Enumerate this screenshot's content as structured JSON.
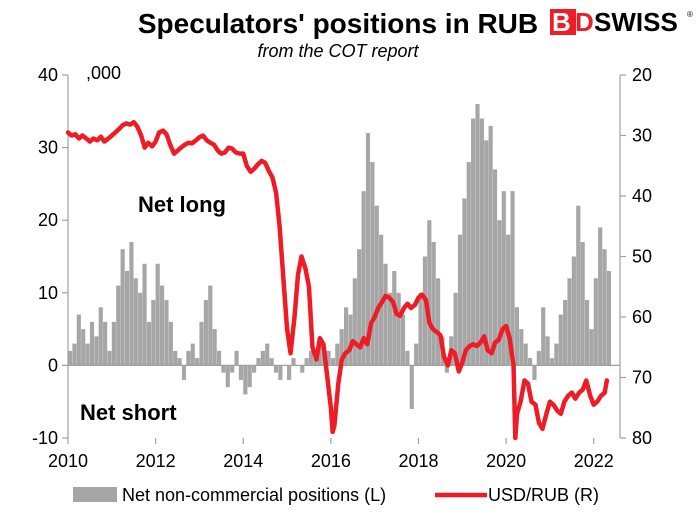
{
  "chart_data": {
    "type": "bar+line",
    "title": "Speculators' positions in RUB",
    "subtitle": "from the COT report",
    "units_label": ",000",
    "annotations": {
      "net_long": "Net long",
      "net_short": "Net short"
    },
    "x_ticks": [
      "2010",
      "2012",
      "2014",
      "2016",
      "2018",
      "2020",
      "2022"
    ],
    "left_axis": {
      "ylim": [
        -10,
        40
      ],
      "ticks": [
        "40",
        "30",
        "20",
        "10",
        "0",
        "-10"
      ]
    },
    "right_axis": {
      "ylim": [
        20,
        80
      ],
      "inverted": true,
      "ticks": [
        "20",
        "30",
        "40",
        "50",
        "60",
        "70",
        "80"
      ]
    },
    "xlim": [
      2010.0,
      2022.6
    ],
    "legend": {
      "placement": "bottom",
      "bars": "Net non-commercial positions (L)",
      "line": "USD/RUB (R)"
    },
    "colors": {
      "bars": "#a6a6a6",
      "line": "#ee1c25",
      "axis": "#a0a0a0"
    },
    "series": [
      {
        "name": "Net non-commercial positions (L)",
        "kind": "bar",
        "axis": "left",
        "points": [
          [
            2010.0,
            2
          ],
          [
            2010.1,
            3
          ],
          [
            2010.2,
            7
          ],
          [
            2010.3,
            5
          ],
          [
            2010.4,
            3
          ],
          [
            2010.5,
            6
          ],
          [
            2010.6,
            4
          ],
          [
            2010.7,
            8
          ],
          [
            2010.8,
            6
          ],
          [
            2010.9,
            2
          ],
          [
            2011.0,
            6
          ],
          [
            2011.1,
            11
          ],
          [
            2011.2,
            16
          ],
          [
            2011.3,
            13
          ],
          [
            2011.4,
            17
          ],
          [
            2011.5,
            12
          ],
          [
            2011.6,
            10
          ],
          [
            2011.7,
            14
          ],
          [
            2011.8,
            6
          ],
          [
            2011.9,
            9
          ],
          [
            2012.0,
            14
          ],
          [
            2012.1,
            11
          ],
          [
            2012.2,
            9
          ],
          [
            2012.3,
            6
          ],
          [
            2012.4,
            2
          ],
          [
            2012.5,
            1
          ],
          [
            2012.6,
            -2
          ],
          [
            2012.7,
            2
          ],
          [
            2012.8,
            3
          ],
          [
            2012.9,
            1
          ],
          [
            2013.0,
            6
          ],
          [
            2013.1,
            9
          ],
          [
            2013.2,
            11
          ],
          [
            2013.3,
            5
          ],
          [
            2013.4,
            2
          ],
          [
            2013.5,
            -1
          ],
          [
            2013.6,
            -3
          ],
          [
            2013.7,
            -1
          ],
          [
            2013.8,
            2
          ],
          [
            2013.9,
            -2
          ],
          [
            2014.0,
            -4
          ],
          [
            2014.1,
            -3
          ],
          [
            2014.2,
            -1
          ],
          [
            2014.3,
            1
          ],
          [
            2014.4,
            2
          ],
          [
            2014.5,
            3
          ],
          [
            2014.6,
            1
          ],
          [
            2014.7,
            -1
          ],
          [
            2014.8,
            -2
          ],
          [
            2014.9,
            0
          ],
          [
            2015.0,
            -2
          ],
          [
            2015.1,
            1
          ],
          [
            2015.2,
            0
          ],
          [
            2015.3,
            -1
          ],
          [
            2015.4,
            1
          ],
          [
            2015.5,
            2
          ],
          [
            2015.6,
            1
          ],
          [
            2015.7,
            3
          ],
          [
            2015.8,
            2
          ],
          [
            2015.9,
            2
          ],
          [
            2016.0,
            1
          ],
          [
            2016.1,
            3
          ],
          [
            2016.2,
            5
          ],
          [
            2016.3,
            8
          ],
          [
            2016.4,
            7
          ],
          [
            2016.5,
            12
          ],
          [
            2016.6,
            16
          ],
          [
            2016.7,
            24
          ],
          [
            2016.8,
            32
          ],
          [
            2016.9,
            28
          ],
          [
            2017.0,
            22
          ],
          [
            2017.1,
            18
          ],
          [
            2017.2,
            14
          ],
          [
            2017.3,
            10
          ],
          [
            2017.4,
            13
          ],
          [
            2017.5,
            10
          ],
          [
            2017.6,
            7
          ],
          [
            2017.7,
            2
          ],
          [
            2017.8,
            -6
          ],
          [
            2017.9,
            3
          ],
          [
            2018.0,
            10
          ],
          [
            2018.1,
            15
          ],
          [
            2018.2,
            20
          ],
          [
            2018.3,
            17
          ],
          [
            2018.4,
            12
          ],
          [
            2018.5,
            4
          ],
          [
            2018.6,
            -1
          ],
          [
            2018.7,
            4
          ],
          [
            2018.8,
            10
          ],
          [
            2018.9,
            18
          ],
          [
            2019.0,
            23
          ],
          [
            2019.1,
            28
          ],
          [
            2019.2,
            34
          ],
          [
            2019.3,
            36
          ],
          [
            2019.4,
            34
          ],
          [
            2019.5,
            31
          ],
          [
            2019.6,
            33
          ],
          [
            2019.7,
            27
          ],
          [
            2019.8,
            20
          ],
          [
            2019.9,
            24
          ],
          [
            2020.0,
            18
          ],
          [
            2020.1,
            24
          ],
          [
            2020.2,
            8
          ],
          [
            2020.3,
            5
          ],
          [
            2020.4,
            3
          ],
          [
            2020.5,
            1
          ],
          [
            2020.6,
            -2
          ],
          [
            2020.7,
            2
          ],
          [
            2020.8,
            8
          ],
          [
            2020.9,
            4
          ],
          [
            2021.0,
            1
          ],
          [
            2021.1,
            3
          ],
          [
            2021.2,
            7
          ],
          [
            2021.3,
            9
          ],
          [
            2021.4,
            12
          ],
          [
            2021.5,
            15
          ],
          [
            2021.6,
            22
          ],
          [
            2021.7,
            17
          ],
          [
            2021.8,
            9
          ],
          [
            2021.9,
            5
          ],
          [
            2022.0,
            12
          ],
          [
            2022.1,
            19
          ],
          [
            2022.2,
            16
          ],
          [
            2022.3,
            13
          ]
        ]
      },
      {
        "name": "USD/RUB (R)",
        "kind": "line",
        "axis": "right",
        "points": [
          [
            2010.0,
            29.5
          ],
          [
            2010.08,
            30.0
          ],
          [
            2010.17,
            29.8
          ],
          [
            2010.25,
            30.5
          ],
          [
            2010.33,
            30.0
          ],
          [
            2010.42,
            30.5
          ],
          [
            2010.5,
            31.0
          ],
          [
            2010.58,
            30.5
          ],
          [
            2010.67,
            30.8
          ],
          [
            2010.75,
            30.2
          ],
          [
            2010.83,
            31.0
          ],
          [
            2010.92,
            30.5
          ],
          [
            2011.0,
            30.0
          ],
          [
            2011.08,
            29.5
          ],
          [
            2011.17,
            28.9
          ],
          [
            2011.25,
            28.3
          ],
          [
            2011.33,
            28.0
          ],
          [
            2011.42,
            28.2
          ],
          [
            2011.5,
            27.8
          ],
          [
            2011.58,
            28.5
          ],
          [
            2011.67,
            30.0
          ],
          [
            2011.75,
            32.0
          ],
          [
            2011.83,
            31.2
          ],
          [
            2011.92,
            31.8
          ],
          [
            2012.0,
            31.0
          ],
          [
            2012.08,
            29.5
          ],
          [
            2012.17,
            29.2
          ],
          [
            2012.25,
            29.8
          ],
          [
            2012.33,
            31.5
          ],
          [
            2012.42,
            33.0
          ],
          [
            2012.5,
            32.5
          ],
          [
            2012.58,
            32.0
          ],
          [
            2012.67,
            31.5
          ],
          [
            2012.75,
            31.2
          ],
          [
            2012.83,
            31.3
          ],
          [
            2012.92,
            30.8
          ],
          [
            2013.0,
            30.3
          ],
          [
            2013.08,
            30.0
          ],
          [
            2013.17,
            30.8
          ],
          [
            2013.25,
            31.2
          ],
          [
            2013.33,
            31.5
          ],
          [
            2013.42,
            32.5
          ],
          [
            2013.5,
            33.0
          ],
          [
            2013.58,
            32.8
          ],
          [
            2013.67,
            32.0
          ],
          [
            2013.75,
            32.2
          ],
          [
            2013.83,
            32.8
          ],
          [
            2013.92,
            33.0
          ],
          [
            2014.0,
            33.0
          ],
          [
            2014.08,
            35.0
          ],
          [
            2014.17,
            36.0
          ],
          [
            2014.25,
            35.5
          ],
          [
            2014.33,
            34.8
          ],
          [
            2014.42,
            34.2
          ],
          [
            2014.5,
            34.5
          ],
          [
            2014.58,
            35.8
          ],
          [
            2014.67,
            37.0
          ],
          [
            2014.75,
            39.5
          ],
          [
            2014.83,
            45.0
          ],
          [
            2014.92,
            54.0
          ],
          [
            2015.0,
            62.0
          ],
          [
            2015.08,
            66.0
          ],
          [
            2015.17,
            60.0
          ],
          [
            2015.25,
            53.0
          ],
          [
            2015.33,
            50.0
          ],
          [
            2015.42,
            52.0
          ],
          [
            2015.5,
            55.0
          ],
          [
            2015.58,
            65.0
          ],
          [
            2015.67,
            67.0
          ],
          [
            2015.75,
            63.5
          ],
          [
            2015.83,
            64.5
          ],
          [
            2015.92,
            70.0
          ],
          [
            2016.0,
            75.0
          ],
          [
            2016.04,
            79.0
          ],
          [
            2016.08,
            78.0
          ],
          [
            2016.17,
            71.0
          ],
          [
            2016.25,
            67.0
          ],
          [
            2016.33,
            66.0
          ],
          [
            2016.42,
            65.5
          ],
          [
            2016.5,
            64.0
          ],
          [
            2016.58,
            64.5
          ],
          [
            2016.67,
            65.0
          ],
          [
            2016.75,
            63.5
          ],
          [
            2016.83,
            64.5
          ],
          [
            2016.92,
            61.0
          ],
          [
            2017.0,
            60.0
          ],
          [
            2017.08,
            58.5
          ],
          [
            2017.17,
            57.5
          ],
          [
            2017.25,
            56.5
          ],
          [
            2017.33,
            56.8
          ],
          [
            2017.42,
            57.5
          ],
          [
            2017.5,
            59.5
          ],
          [
            2017.58,
            59.8
          ],
          [
            2017.67,
            58.5
          ],
          [
            2017.75,
            57.8
          ],
          [
            2017.83,
            58.5
          ],
          [
            2017.92,
            58.0
          ],
          [
            2018.0,
            56.8
          ],
          [
            2018.08,
            56.3
          ],
          [
            2018.17,
            57.2
          ],
          [
            2018.25,
            61.0
          ],
          [
            2018.33,
            62.0
          ],
          [
            2018.42,
            62.5
          ],
          [
            2018.5,
            63.0
          ],
          [
            2018.58,
            66.5
          ],
          [
            2018.67,
            68.0
          ],
          [
            2018.75,
            65.5
          ],
          [
            2018.83,
            66.0
          ],
          [
            2018.92,
            69.0
          ],
          [
            2019.0,
            67.5
          ],
          [
            2019.08,
            65.5
          ],
          [
            2019.17,
            64.8
          ],
          [
            2019.25,
            64.5
          ],
          [
            2019.33,
            64.8
          ],
          [
            2019.42,
            64.2
          ],
          [
            2019.5,
            63.2
          ],
          [
            2019.58,
            65.5
          ],
          [
            2019.67,
            66.0
          ],
          [
            2019.75,
            64.2
          ],
          [
            2019.83,
            63.8
          ],
          [
            2019.92,
            62.0
          ],
          [
            2020.0,
            61.5
          ],
          [
            2020.08,
            63.5
          ],
          [
            2020.17,
            68.0
          ],
          [
            2020.21,
            80.0
          ],
          [
            2020.25,
            76.0
          ],
          [
            2020.33,
            74.0
          ],
          [
            2020.42,
            70.5
          ],
          [
            2020.5,
            71.0
          ],
          [
            2020.58,
            74.0
          ],
          [
            2020.67,
            74.5
          ],
          [
            2020.75,
            77.5
          ],
          [
            2020.83,
            78.5
          ],
          [
            2020.92,
            76.0
          ],
          [
            2021.0,
            74.0
          ],
          [
            2021.08,
            74.5
          ],
          [
            2021.17,
            75.5
          ],
          [
            2021.25,
            76.0
          ],
          [
            2021.33,
            74.0
          ],
          [
            2021.42,
            73.0
          ],
          [
            2021.5,
            72.5
          ],
          [
            2021.58,
            73.5
          ],
          [
            2021.67,
            72.5
          ],
          [
            2021.75,
            72.0
          ],
          [
            2021.83,
            70.5
          ],
          [
            2021.92,
            73.0
          ],
          [
            2022.0,
            74.5
          ],
          [
            2022.08,
            74.0
          ],
          [
            2022.17,
            73.0
          ],
          [
            2022.25,
            72.5
          ],
          [
            2022.3,
            70.5
          ]
        ]
      }
    ]
  }
}
